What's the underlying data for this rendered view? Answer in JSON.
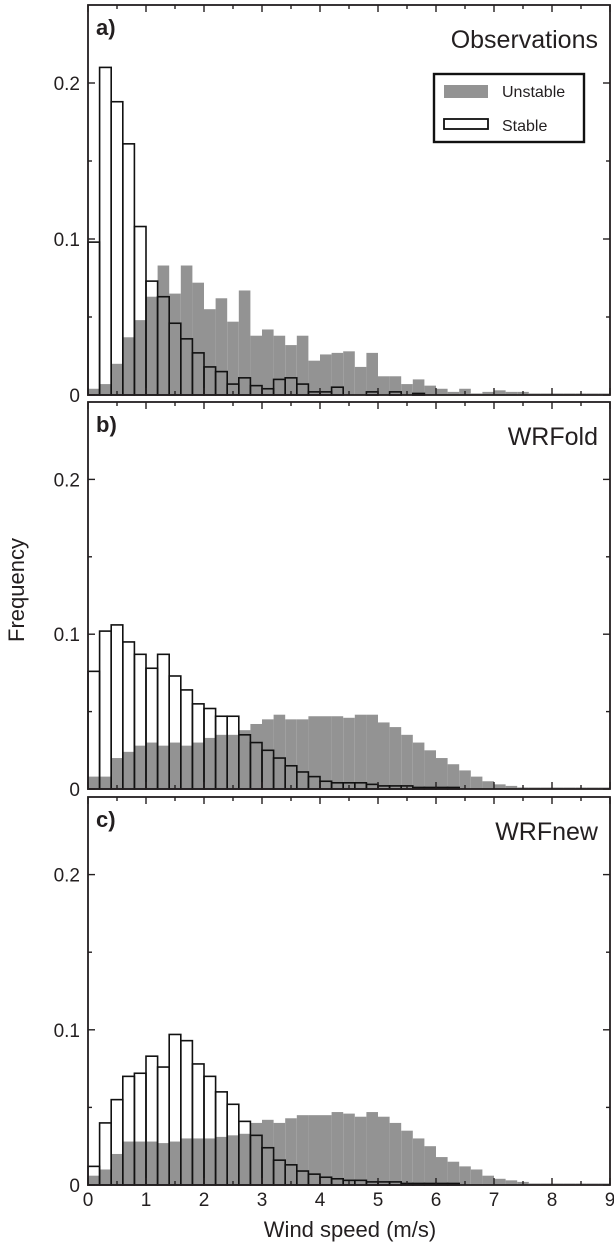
{
  "figure": {
    "ylabel": "Frequency",
    "xlabel": "Wind speed (m/s)"
  },
  "chart_data": [
    {
      "type": "bar",
      "panel_label": "a)",
      "title": "Observations",
      "bin_width": 0.2,
      "x_start": 0,
      "xlim": [
        0,
        9
      ],
      "ylim": [
        0,
        0.25
      ],
      "x_ticks": [
        "0",
        "1",
        "2",
        "3",
        "4",
        "5",
        "6",
        "7",
        "8",
        "9"
      ],
      "y_ticks": [
        "0",
        "0.1",
        "0.2"
      ],
      "legend": {
        "placement": "top-right",
        "entries": [
          "Unstable",
          "Stable"
        ]
      },
      "series": [
        {
          "name": "Unstable",
          "color": "#939393",
          "values": [
            0.004,
            0.007,
            0.02,
            0.037,
            0.048,
            0.063,
            0.083,
            0.065,
            0.083,
            0.072,
            0.055,
            0.062,
            0.047,
            0.067,
            0.038,
            0.042,
            0.038,
            0.032,
            0.038,
            0.022,
            0.026,
            0.027,
            0.028,
            0.018,
            0.027,
            0.012,
            0.012,
            0.007,
            0.01,
            0.006,
            0.004,
            0.002,
            0.004,
            0.001,
            0.002,
            0.003,
            0.002,
            0.002,
            0.001,
            0.001,
            0.001,
            0.001,
            0.001,
            0.001,
            0.001
          ]
        },
        {
          "name": "Stable",
          "color": "#ffffff",
          "values": [
            0.098,
            0.21,
            0.188,
            0.161,
            0.108,
            0.073,
            0.063,
            0.046,
            0.036,
            0.027,
            0.018,
            0.015,
            0.007,
            0.011,
            0.006,
            0.004,
            0.01,
            0.011,
            0.007,
            0.002,
            0.002,
            0.005,
            0.0,
            0.0,
            0.002,
            0.0,
            0.002,
            0.0,
            0.001,
            0.0,
            0.0,
            0.0,
            0.0,
            0.0,
            0.0,
            0.0,
            0.0,
            0.0,
            0.0,
            0.0,
            0.0,
            0.0,
            0.0,
            0.0,
            0.0
          ]
        }
      ]
    },
    {
      "type": "bar",
      "panel_label": "b)",
      "title": "WRFold",
      "bin_width": 0.2,
      "x_start": 0,
      "xlim": [
        0,
        9
      ],
      "ylim": [
        0,
        0.25
      ],
      "x_ticks": [
        "0",
        "1",
        "2",
        "3",
        "4",
        "5",
        "6",
        "7",
        "8",
        "9"
      ],
      "y_ticks": [
        "0",
        "0.1",
        "0.2"
      ],
      "series": [
        {
          "name": "Unstable",
          "color": "#939393",
          "values": [
            0.008,
            0.008,
            0.02,
            0.024,
            0.028,
            0.03,
            0.028,
            0.03,
            0.028,
            0.03,
            0.033,
            0.035,
            0.035,
            0.038,
            0.042,
            0.045,
            0.048,
            0.045,
            0.045,
            0.047,
            0.047,
            0.047,
            0.046,
            0.048,
            0.048,
            0.043,
            0.04,
            0.035,
            0.03,
            0.025,
            0.02,
            0.016,
            0.012,
            0.008,
            0.005,
            0.003,
            0.002,
            0.001,
            0.001,
            0.001,
            0.001,
            0.001,
            0.001,
            0.001,
            0.001
          ]
        },
        {
          "name": "Stable",
          "color": "#ffffff",
          "values": [
            0.076,
            0.102,
            0.106,
            0.095,
            0.087,
            0.078,
            0.087,
            0.073,
            0.064,
            0.055,
            0.052,
            0.047,
            0.047,
            0.035,
            0.03,
            0.025,
            0.02,
            0.015,
            0.011,
            0.008,
            0.005,
            0.004,
            0.004,
            0.004,
            0.003,
            0.002,
            0.002,
            0.002,
            0.001,
            0.001,
            0.001,
            0.001,
            0.0,
            0.0,
            0.0,
            0.0,
            0.0,
            0.0,
            0.0,
            0.0,
            0.0,
            0.0,
            0.0,
            0.0,
            0.0
          ]
        }
      ]
    },
    {
      "type": "bar",
      "panel_label": "c)",
      "title": "WRFnew",
      "bin_width": 0.2,
      "x_start": 0,
      "xlim": [
        0,
        9
      ],
      "ylim": [
        0,
        0.25
      ],
      "x_ticks": [
        "0",
        "1",
        "2",
        "3",
        "4",
        "5",
        "6",
        "7",
        "8",
        "9"
      ],
      "y_ticks": [
        "0",
        "0.1",
        "0.2"
      ],
      "series": [
        {
          "name": "Unstable",
          "color": "#939393",
          "values": [
            0.006,
            0.01,
            0.02,
            0.028,
            0.028,
            0.028,
            0.027,
            0.028,
            0.03,
            0.03,
            0.03,
            0.031,
            0.032,
            0.033,
            0.04,
            0.042,
            0.04,
            0.043,
            0.045,
            0.045,
            0.045,
            0.047,
            0.046,
            0.044,
            0.047,
            0.044,
            0.04,
            0.035,
            0.03,
            0.025,
            0.018,
            0.015,
            0.012,
            0.01,
            0.006,
            0.004,
            0.003,
            0.002,
            0.001,
            0.001,
            0.001,
            0.001,
            0.001,
            0.001,
            0.001
          ]
        },
        {
          "name": "Stable",
          "color": "#ffffff",
          "values": [
            0.012,
            0.04,
            0.055,
            0.07,
            0.072,
            0.083,
            0.076,
            0.097,
            0.093,
            0.078,
            0.07,
            0.06,
            0.052,
            0.041,
            0.032,
            0.024,
            0.016,
            0.013,
            0.009,
            0.007,
            0.005,
            0.004,
            0.003,
            0.003,
            0.002,
            0.002,
            0.002,
            0.001,
            0.001,
            0.001,
            0.001,
            0.001,
            0.0,
            0.0,
            0.0,
            0.0,
            0.0,
            0.0,
            0.0,
            0.0,
            0.0,
            0.0,
            0.0,
            0.0,
            0.0
          ]
        }
      ]
    }
  ]
}
